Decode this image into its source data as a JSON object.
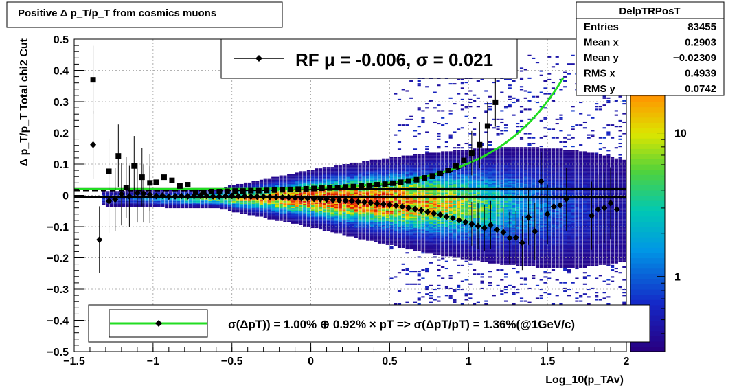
{
  "chart_data": {
    "type": "scatter",
    "title": "Positive Δ p_T/p_T from cosmics muons",
    "xlabel": "Log_10(p_TAv)",
    "ylabel": "Δ p_T/p_T  Total chi2 Cut",
    "xlim": [
      -1.5,
      2.0
    ],
    "ylim": [
      -0.5,
      0.5
    ],
    "x_ticks": [
      "−1.5",
      "−1",
      "−0.5",
      "0",
      "0.5",
      "1",
      "1.5",
      "2"
    ],
    "y_ticks": [
      "−0.5",
      "−0.4",
      "−0.3",
      "−0.2",
      "−0.1",
      "0",
      "0.1",
      "0.2",
      "0.3",
      "0.4",
      "0.5"
    ],
    "grid": true,
    "stats_box": {
      "name": "DelpTRPosT",
      "rows": [
        {
          "label": "Entries",
          "value": "83455"
        },
        {
          "label": "Mean x",
          "value": "0.2903"
        },
        {
          "label": "Mean y",
          "value": "−0.02309"
        },
        {
          "label": "RMS x",
          "value": "0.4939"
        },
        {
          "label": "RMS y",
          "value": "0.0742"
        }
      ]
    },
    "legend_top": {
      "label": "RF μ = -0.006, σ =   0.021",
      "placement": "top-center"
    },
    "legend_bottom": {
      "label": "σ(ΔpT)) =  1.00% ⊕  0.92% × pT => σ(ΔpT/pT) =  1.36%(@1GeV/c)",
      "placement": "bottom-center"
    },
    "colorbar": {
      "scale": "log",
      "tick_labels": [
        "1",
        "10"
      ],
      "tick_values": [
        1,
        10
      ],
      "range": [
        0.3,
        45
      ]
    },
    "colors": {
      "fit_curve": "#22dd22",
      "frame": "#000000",
      "grid": "#999999"
    },
    "series": [
      {
        "marker": "square",
        "x": [
          -1.38,
          -1.28,
          -1.22,
          -1.17,
          -1.12,
          -1.07,
          -1.02,
          -0.98,
          -0.93,
          -0.88,
          -0.83,
          -0.78,
          -0.73,
          -0.68,
          -0.63,
          -0.58,
          -0.53,
          -0.48,
          -0.43,
          -0.38,
          -0.33,
          -0.28,
          -0.23,
          -0.18,
          -0.13,
          -0.08,
          -0.03,
          0.02,
          0.07,
          0.12,
          0.17,
          0.22,
          0.27,
          0.32,
          0.37,
          0.42,
          0.47,
          0.52,
          0.57,
          0.62,
          0.67,
          0.72,
          0.77,
          0.82,
          0.87,
          0.92,
          0.97,
          1.02,
          1.07,
          1.12,
          1.17
        ],
        "y": [
          0.37,
          0.077,
          0.126,
          0.025,
          0.094,
          0.058,
          0.04,
          0.042,
          0.058,
          0.048,
          0.03,
          0.034,
          0.01,
          0.01,
          0.012,
          0.012,
          0.013,
          0.014,
          0.014,
          0.015,
          0.015,
          0.016,
          0.017,
          0.018,
          0.019,
          0.02,
          0.021,
          0.022,
          0.023,
          0.024,
          0.025,
          0.027,
          0.028,
          0.03,
          0.032,
          0.034,
          0.036,
          0.039,
          0.042,
          0.046,
          0.05,
          0.056,
          0.062,
          0.07,
          0.08,
          0.094,
          0.112,
          0.135,
          0.162,
          0.222,
          0.298
        ]
      },
      {
        "marker": "diamond",
        "x": [
          -1.38,
          -1.34,
          -1.28,
          -1.24,
          -1.2,
          -1.15,
          -1.1,
          -1.06,
          -1.02,
          -0.98,
          -0.94,
          -0.9,
          -0.86,
          -0.82,
          -0.78,
          -0.74,
          -0.7,
          -0.66,
          -0.62,
          -0.58,
          -0.54,
          -0.5,
          -0.46,
          -0.42,
          -0.38,
          -0.34,
          -0.3,
          -0.26,
          -0.22,
          -0.18,
          -0.14,
          -0.1,
          -0.06,
          -0.02,
          0.02,
          0.06,
          0.1,
          0.14,
          0.18,
          0.22,
          0.26,
          0.3,
          0.34,
          0.38,
          0.42,
          0.46,
          0.5,
          0.54,
          0.58,
          0.62,
          0.66,
          0.7,
          0.74,
          0.78,
          0.82,
          0.86,
          0.9,
          0.94,
          0.98,
          1.02,
          1.06,
          1.1,
          1.14,
          1.18,
          1.22,
          1.26,
          1.3,
          1.34,
          1.38,
          1.42,
          1.46,
          1.5,
          1.54,
          1.58,
          1.62,
          1.78,
          1.82,
          1.86,
          1.9,
          1.94
        ],
        "y": [
          0.162,
          -0.142,
          -0.018,
          -0.013,
          0.004,
          -0.003,
          0.008,
          0.006,
          0.002,
          -0.002,
          -0.001,
          -0.004,
          -0.003,
          -0.002,
          -0.003,
          -0.002,
          -0.001,
          -0.002,
          -0.003,
          -0.003,
          -0.002,
          -0.002,
          -0.003,
          -0.003,
          -0.004,
          -0.004,
          -0.004,
          -0.005,
          -0.006,
          -0.007,
          -0.007,
          -0.008,
          -0.009,
          -0.01,
          -0.011,
          -0.012,
          -0.013,
          -0.015,
          -0.016,
          -0.017,
          -0.018,
          -0.02,
          -0.022,
          -0.024,
          -0.026,
          -0.028,
          -0.03,
          -0.033,
          -0.036,
          -0.04,
          -0.044,
          -0.048,
          -0.053,
          -0.058,
          -0.062,
          -0.068,
          -0.073,
          -0.08,
          -0.086,
          -0.092,
          -0.098,
          -0.104,
          -0.095,
          -0.11,
          -0.118,
          -0.136,
          -0.135,
          -0.152,
          -0.07,
          -0.115,
          0.045,
          -0.06,
          -0.036,
          -0.032,
          -0.012,
          -0.065,
          -0.045,
          -0.04,
          -0.025,
          -0.045
        ]
      }
    ]
  }
}
